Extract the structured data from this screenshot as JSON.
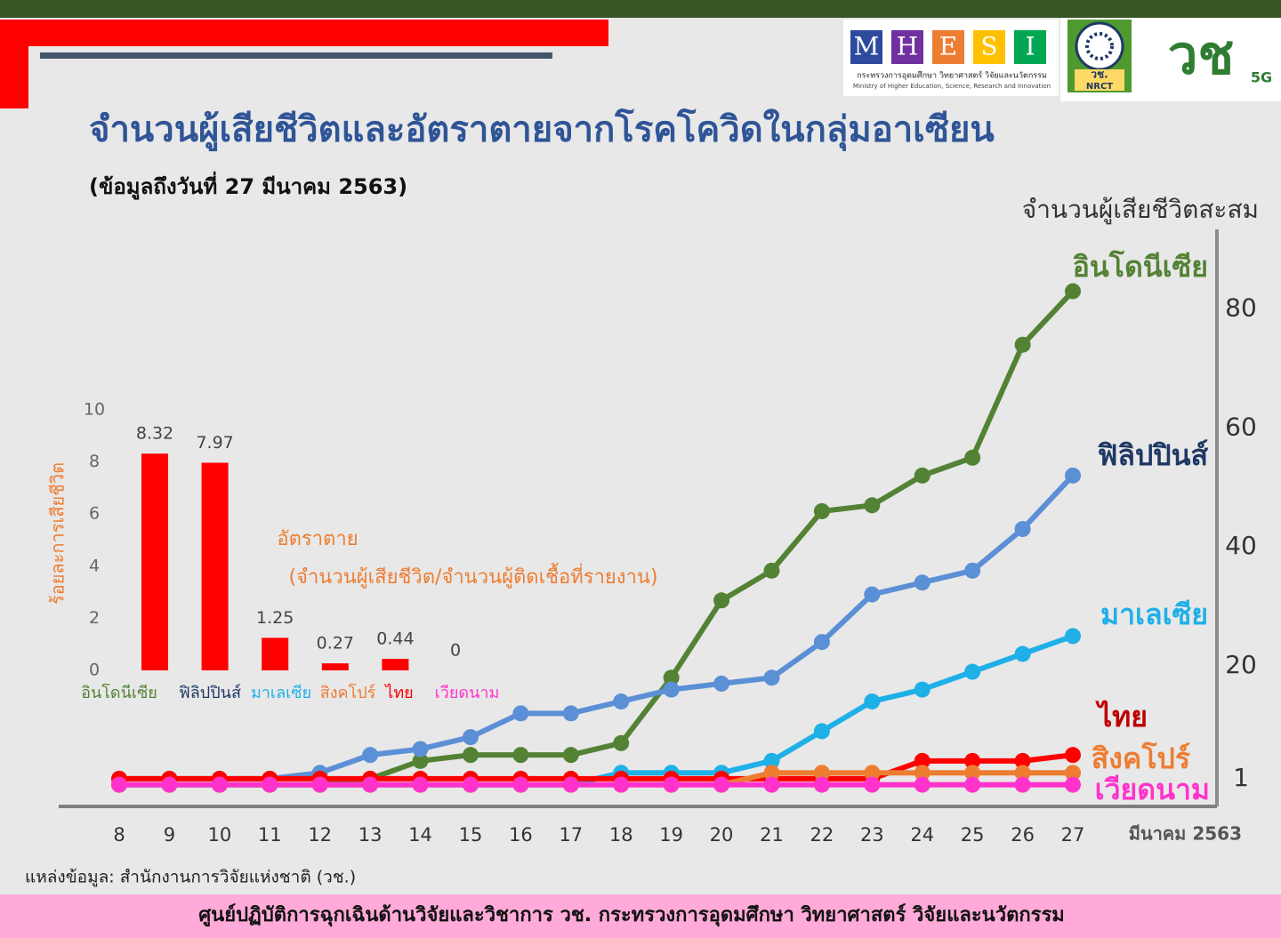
{
  "header": {
    "logo_letters": [
      "M",
      "H",
      "E",
      "S",
      "I"
    ],
    "ministry_th": "กระทรวงการอุดมศึกษา วิทยาศาสตร์ วิจัยและนวัตกรรม",
    "ministry_en": "Ministry of Higher Education, Science, Research and Innovation",
    "nrct_th": "วช.",
    "nrct_en": "NRCT",
    "brand": "วช",
    "brand_sub": "5G"
  },
  "title": "จำนวนผู้เสียชีวิตและอัตราตายจากโรคโควิดในกลุ่มอาเซียน",
  "subtitle": "(ข้อมูลถึงวันที่ 27 มีนาคม 2563)",
  "chart_data": [
    {
      "type": "line",
      "y_label": "จำนวนผู้เสียชีวิตสะสม",
      "x_label": "มีนาคม 2563",
      "categories": [
        "8",
        "9",
        "10",
        "11",
        "12",
        "13",
        "14",
        "15",
        "16",
        "17",
        "18",
        "19",
        "20",
        "21",
        "22",
        "23",
        "24",
        "25",
        "26",
        "27"
      ],
      "series": [
        {
          "name": "อินโดนีเซีย",
          "color": "#548235",
          "label_color": "#548235",
          "values": [
            0,
            0,
            0,
            0,
            0,
            1,
            4,
            5,
            5,
            5,
            7,
            18,
            31,
            36,
            46,
            47,
            52,
            55,
            74,
            83
          ]
        },
        {
          "name": "ฟิลิปปินส์",
          "color": "#5b8fd6",
          "label_color": "#1f3864",
          "values": [
            1,
            1,
            1,
            1,
            2,
            5,
            6,
            8,
            12,
            12,
            14,
            16,
            17,
            18,
            24,
            32,
            34,
            36,
            43,
            52
          ]
        },
        {
          "name": "มาเลเซีย",
          "color": "#1fb0e8",
          "label_color": "#1fb0e8",
          "values": [
            0,
            0,
            0,
            0,
            0,
            0,
            0,
            0,
            0,
            0,
            2,
            2,
            2,
            4,
            9,
            14,
            16,
            19,
            22,
            25
          ]
        },
        {
          "name": "ไทย",
          "color": "#ff0000",
          "label_color": "#c00000",
          "values": [
            1,
            1,
            1,
            1,
            1,
            1,
            1,
            1,
            1,
            1,
            1,
            1,
            1,
            1,
            1,
            1,
            4,
            4,
            4,
            5
          ]
        },
        {
          "name": "สิงคโปร์",
          "color": "#ed7d31",
          "label_color": "#ed7d31",
          "values": [
            0,
            0,
            0,
            0,
            0,
            0,
            0,
            0,
            0,
            0,
            0,
            0,
            0,
            2,
            2,
            2,
            2,
            2,
            2,
            2
          ]
        },
        {
          "name": "เวียดนาม",
          "color": "#ff33cc",
          "label_color": "#ff33cc",
          "values": [
            0,
            0,
            0,
            0,
            0,
            0,
            0,
            0,
            0,
            0,
            0,
            0,
            0,
            0,
            0,
            0,
            0,
            0,
            0,
            0
          ]
        }
      ],
      "ylim": [
        -3.5,
        94
      ],
      "yticks": [
        1,
        20,
        40,
        60,
        80
      ],
      "y_axis_side": "right"
    },
    {
      "type": "bar",
      "y_label": "ร้อยละการเสียชีวิต",
      "annotations": [
        "อัตราตาย",
        "(จำนวนผู้เสียชีวิต/จำนวนผู้ติดเชื้อที่รายงาน)"
      ],
      "categories": [
        "อินโดนีเซีย",
        "ฟิลิปปินส์",
        "มาเลเซีย",
        "สิงคโปร์",
        "ไทย",
        "เวียดนาม"
      ],
      "category_colors": [
        "#548235",
        "#1f3864",
        "#1fb0e8",
        "#ed7d31",
        "#ff0000",
        "#ff33cc"
      ],
      "values": [
        8.32,
        7.97,
        1.25,
        0.27,
        0.44,
        0
      ],
      "color": "#ff0000",
      "ylim": [
        0,
        10
      ],
      "yticks": [
        0,
        2,
        4,
        6,
        8,
        10
      ]
    }
  ],
  "source": "แหล่งข้อมูล: สำนักงานการวิจัยแห่งชาติ (วช.)",
  "footer": "ศูนย์ปฏิบัติการฉุกเฉินด้านวิจัยและวิชาการ  วช.  กระทรวงการอุดมศึกษา วิทยาศาสตร์ วิจัยและนวัตกรรม"
}
